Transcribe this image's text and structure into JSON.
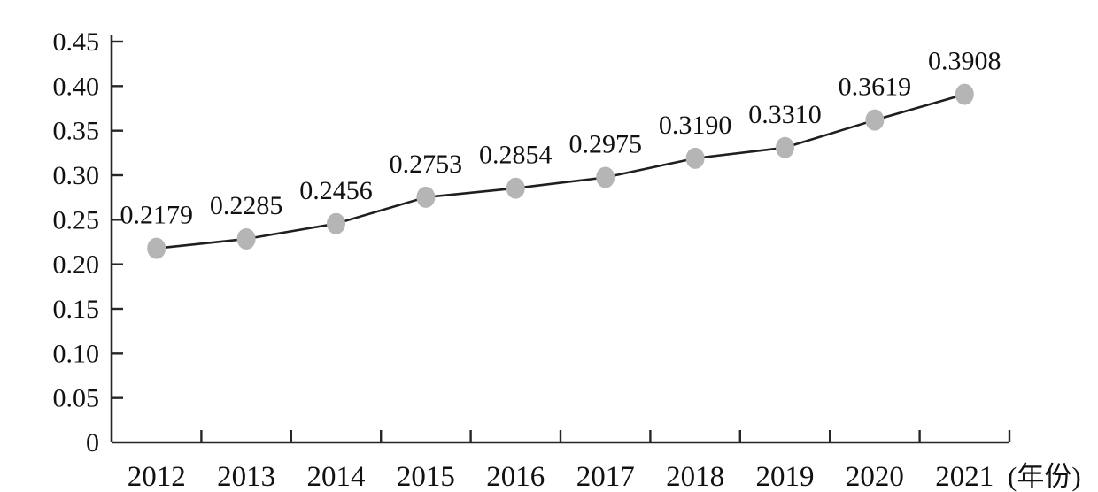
{
  "chart_data": {
    "type": "line",
    "title": "",
    "categories": [
      "2012",
      "2013",
      "2014",
      "2015",
      "2016",
      "2017",
      "2018",
      "2019",
      "2020",
      "2021"
    ],
    "series": [
      {
        "name": "",
        "values": [
          0.2179,
          0.2285,
          0.2456,
          0.2753,
          0.2854,
          0.2975,
          0.319,
          0.331,
          0.3619,
          0.3908
        ]
      }
    ],
    "point_labels": [
      "0.2179",
      "0.2285",
      "0.2456",
      "0.2753",
      "0.2854",
      "0.2975",
      "0.3190",
      "0.3310",
      "0.3619",
      "0.3908"
    ],
    "xlabel": "(年份)",
    "ylabel": "",
    "ylim": [
      0,
      0.45
    ],
    "y_tick_step": 0.05,
    "y_tick_labels": [
      "0",
      "0.05",
      "0.10",
      "0.15",
      "0.20",
      "0.25",
      "0.30",
      "0.35",
      "0.40",
      "0.45"
    ],
    "grid": false,
    "legend_position": "none",
    "marker_shape": "ellipse",
    "colors": {
      "line": "#1f1f1f",
      "marker": "#b5b5b5",
      "axis": "#262626",
      "text": "#111111",
      "background": "#ffffff"
    }
  }
}
